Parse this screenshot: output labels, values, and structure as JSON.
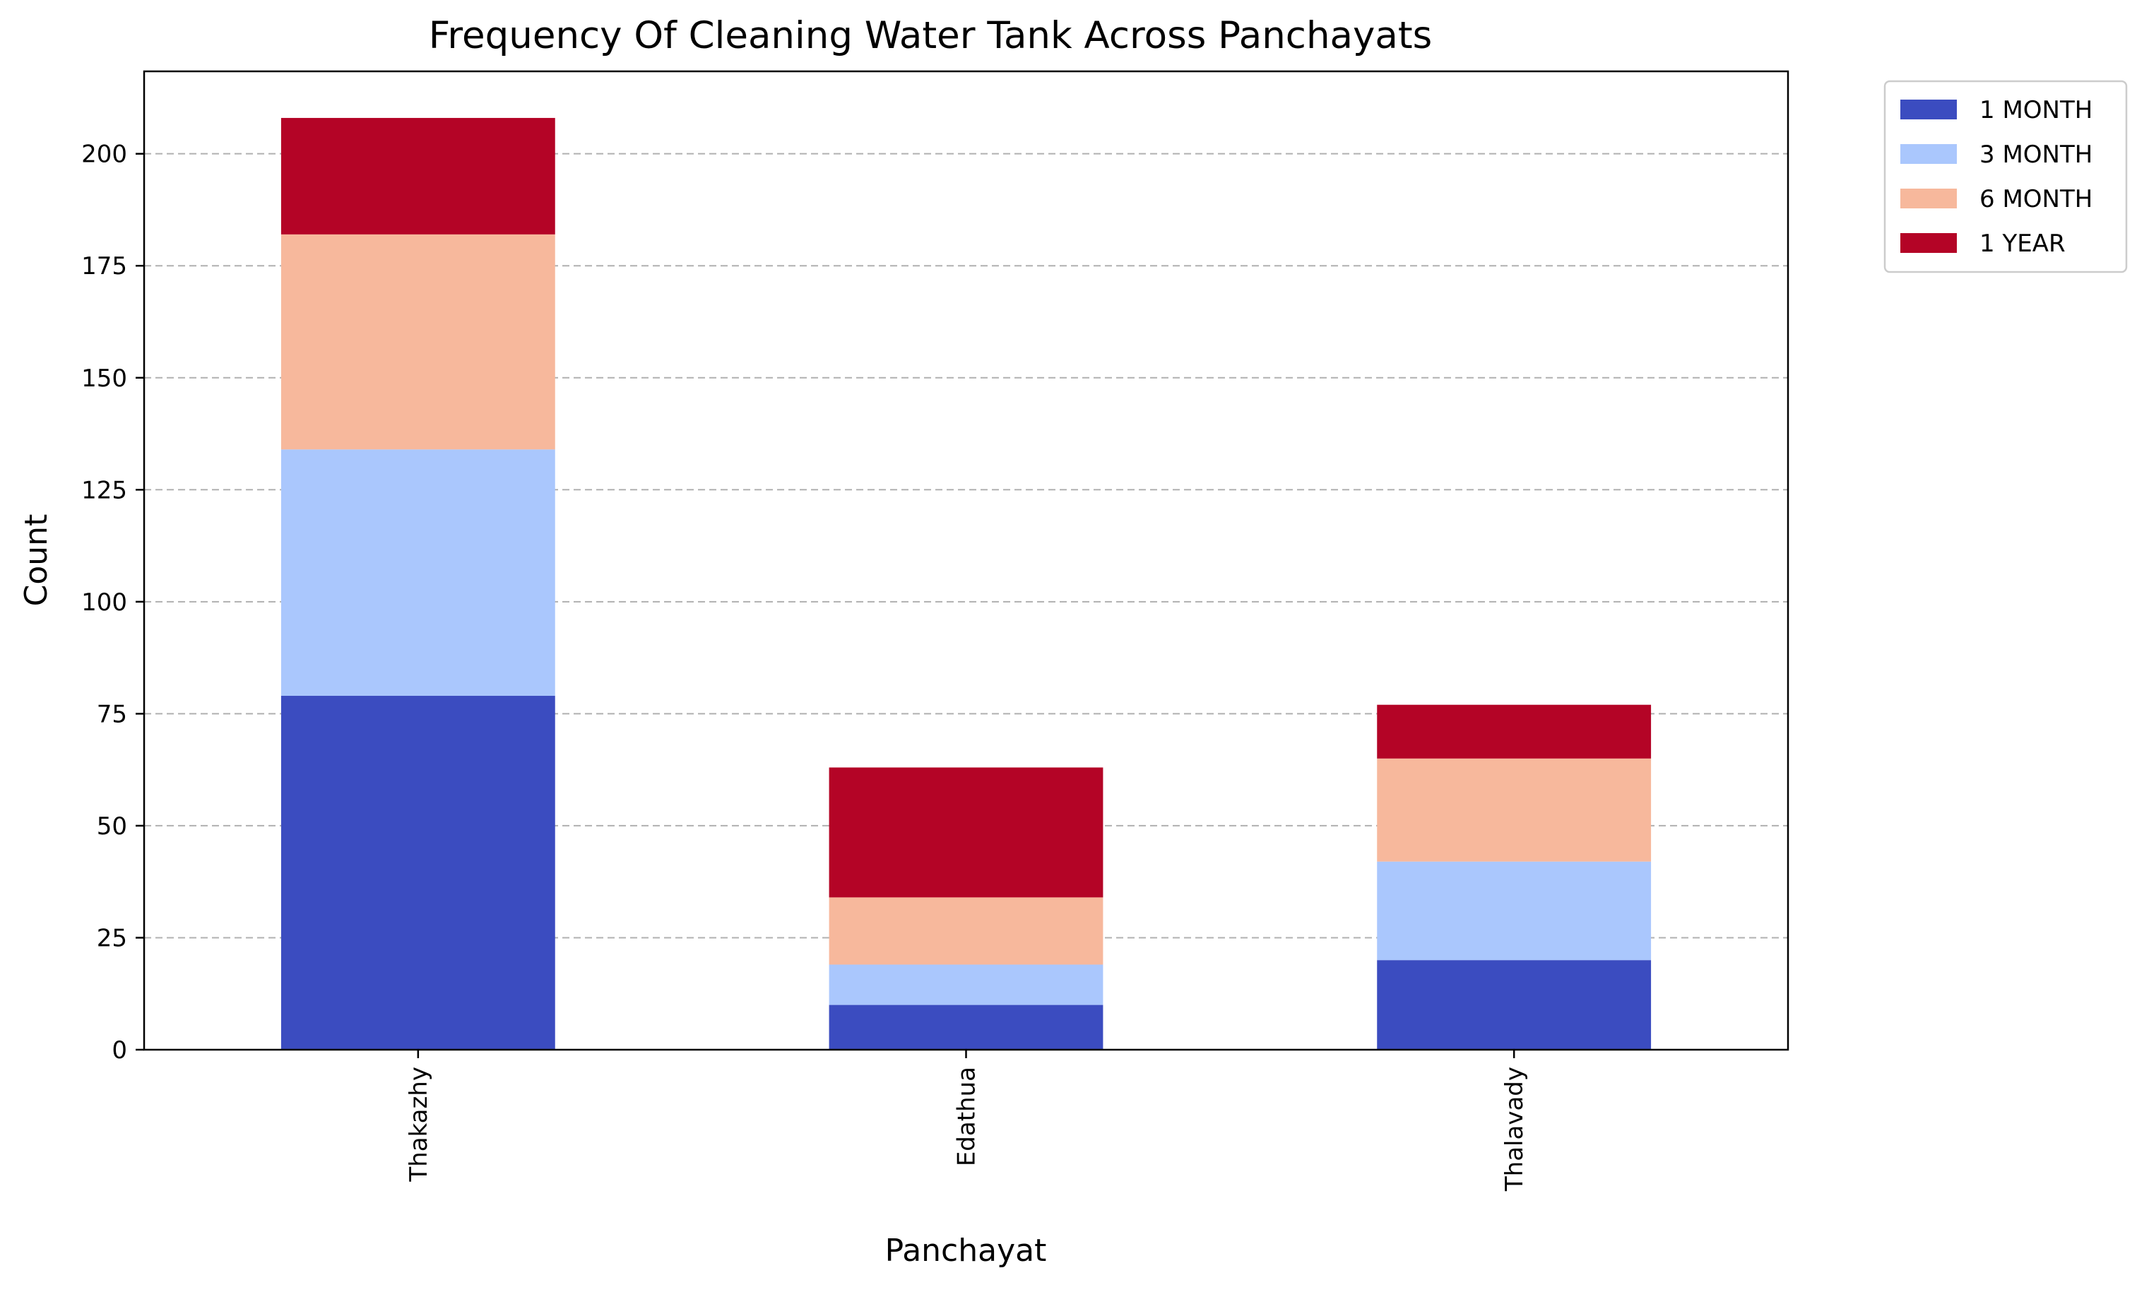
{
  "chart_data": {
    "type": "bar",
    "stacked": true,
    "title": "Frequency Of Cleaning Water Tank Across Panchayats",
    "xlabel": "Panchayat",
    "ylabel": "Count",
    "categories": [
      "Thakazhy",
      "Edathua",
      "Thalavady"
    ],
    "series": [
      {
        "name": "1 MONTH",
        "values": [
          79,
          10,
          20
        ],
        "color": "#3b4cc0"
      },
      {
        "name": "3 MONTH",
        "values": [
          55,
          9,
          22
        ],
        "color": "#aac7fd"
      },
      {
        "name": "6 MONTH",
        "values": [
          48,
          15,
          23
        ],
        "color": "#f7b89c"
      },
      {
        "name": "1 YEAR",
        "values": [
          26,
          29,
          12
        ],
        "color": "#b40426"
      }
    ],
    "ylim": [
      0,
      218.4
    ],
    "yticks": [
      "0",
      "25",
      "50",
      "75",
      "100",
      "125",
      "150",
      "175",
      "200"
    ],
    "grid": {
      "axis": "y",
      "style": "dashed"
    },
    "legend_position": "outside-top-right",
    "x_tick_rotation": "vertical"
  }
}
